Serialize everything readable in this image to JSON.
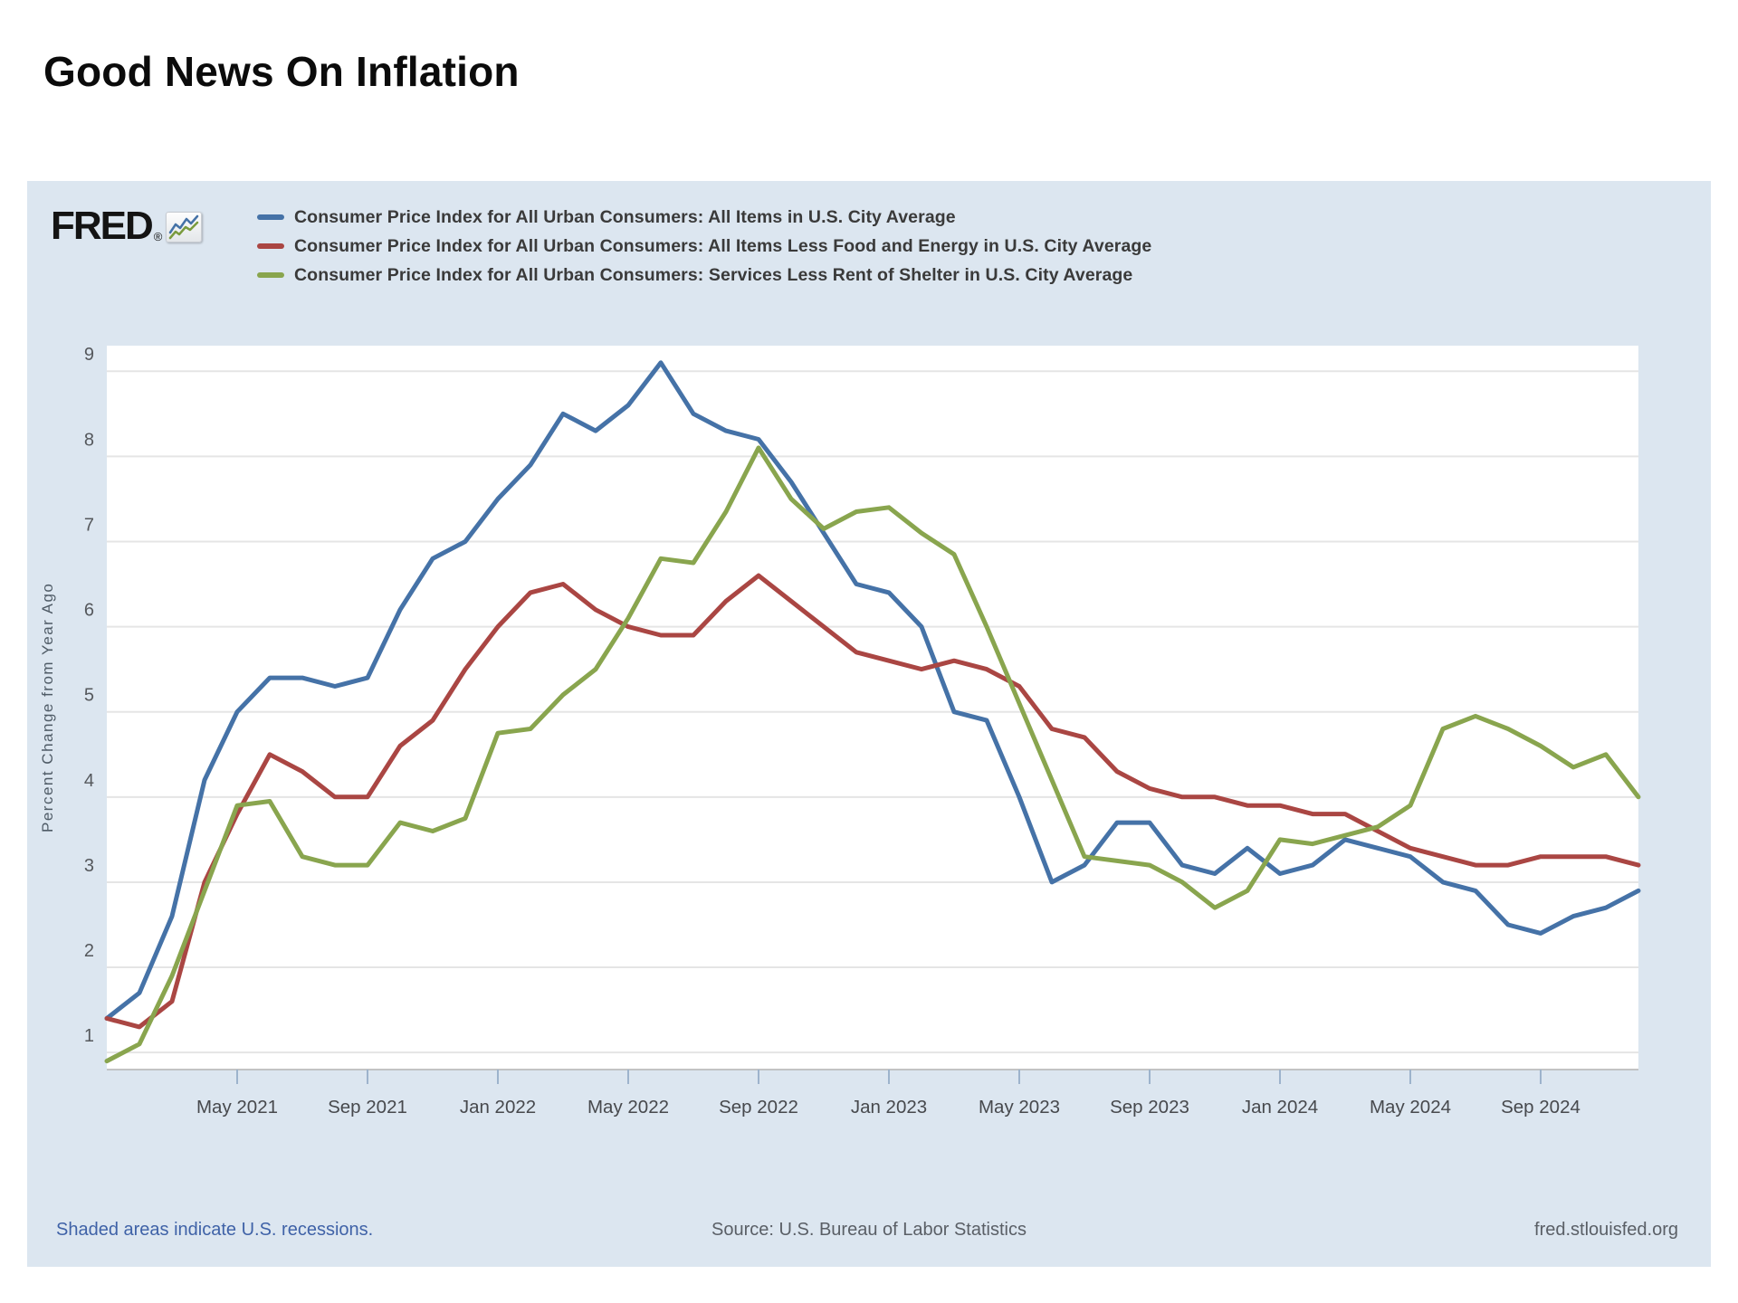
{
  "page": {
    "title": "Good News On Inflation"
  },
  "panel": {
    "logo": {
      "text": "FRED",
      "registered": "®"
    },
    "legend": {
      "items": [
        {
          "label": "Consumer Price Index for All Urban Consumers: All Items in U.S. City Average",
          "color": "#4572a7"
        },
        {
          "label": "Consumer Price Index for All Urban Consumers: All Items Less Food and Energy in U.S. City Average",
          "color": "#aa4643"
        },
        {
          "label": "Consumer Price Index for All Urban Consumers: Services Less Rent of Shelter in U.S. City Average",
          "color": "#89a54e"
        }
      ]
    },
    "y_axis": {
      "title": "Percent Change from Year Ago",
      "ticks": [
        1,
        2,
        3,
        4,
        5,
        6,
        7,
        8,
        9
      ]
    },
    "x_axis": {
      "tick_labels": [
        "May 2021",
        "Sep 2021",
        "Jan 2022",
        "May 2022",
        "Sep 2022",
        "Jan 2023",
        "May 2023",
        "Sep 2023",
        "Jan 2024",
        "May 2024",
        "Sep 2024"
      ],
      "tick_month_indices": [
        4,
        8,
        12,
        16,
        20,
        24,
        28,
        32,
        36,
        40,
        44
      ]
    },
    "footer": {
      "left": "Shaded areas indicate U.S. recessions.",
      "center": "Source: U.S. Bureau of Labor Statistics",
      "right": "fred.stlouisfed.org"
    }
  },
  "chart_data": {
    "type": "line",
    "title": "Good News On Inflation",
    "ylabel": "Percent Change from Year Ago",
    "ylim": [
      0.8,
      9.3
    ],
    "grid": true,
    "legend_position": "top-left",
    "x": [
      "2021-01",
      "2021-02",
      "2021-03",
      "2021-04",
      "2021-05",
      "2021-06",
      "2021-07",
      "2021-08",
      "2021-09",
      "2021-10",
      "2021-11",
      "2021-12",
      "2022-01",
      "2022-02",
      "2022-03",
      "2022-04",
      "2022-05",
      "2022-06",
      "2022-07",
      "2022-08",
      "2022-09",
      "2022-10",
      "2022-11",
      "2022-12",
      "2023-01",
      "2023-02",
      "2023-03",
      "2023-04",
      "2023-05",
      "2023-06",
      "2023-07",
      "2023-08",
      "2023-09",
      "2023-10",
      "2023-11",
      "2023-12",
      "2024-01",
      "2024-02",
      "2024-03",
      "2024-04",
      "2024-05",
      "2024-06",
      "2024-07",
      "2024-08",
      "2024-09",
      "2024-10",
      "2024-11",
      "2024-12"
    ],
    "series": [
      {
        "key": "cpi-all-items",
        "name": "Consumer Price Index for All Urban Consumers: All Items in U.S. City Average",
        "color": "#4572a7",
        "values": [
          1.4,
          1.7,
          2.6,
          4.2,
          5.0,
          5.4,
          5.4,
          5.3,
          5.4,
          6.2,
          6.8,
          7.0,
          7.5,
          7.9,
          8.5,
          8.3,
          8.6,
          9.1,
          8.5,
          8.3,
          8.2,
          7.7,
          7.1,
          6.5,
          6.4,
          6.0,
          5.0,
          4.9,
          4.0,
          3.0,
          3.2,
          3.7,
          3.7,
          3.2,
          3.1,
          3.4,
          3.1,
          3.2,
          3.5,
          3.4,
          3.3,
          3.0,
          2.9,
          2.5,
          2.4,
          2.6,
          2.7,
          2.9
        ]
      },
      {
        "key": "cpi-core",
        "name": "Consumer Price Index for All Urban Consumers: All Items Less Food and Energy in U.S. City Average",
        "color": "#aa4643",
        "values": [
          1.4,
          1.3,
          1.6,
          3.0,
          3.8,
          4.5,
          4.3,
          4.0,
          4.0,
          4.6,
          4.9,
          5.5,
          6.0,
          6.4,
          6.5,
          6.2,
          6.0,
          5.9,
          5.9,
          6.3,
          6.6,
          6.3,
          6.0,
          5.7,
          5.6,
          5.5,
          5.6,
          5.5,
          5.3,
          4.8,
          4.7,
          4.3,
          4.1,
          4.0,
          4.0,
          3.9,
          3.9,
          3.8,
          3.8,
          3.6,
          3.4,
          3.3,
          3.2,
          3.2,
          3.3,
          3.3,
          3.3,
          3.2
        ]
      },
      {
        "key": "cpi-services-less-shelter",
        "name": "Consumer Price Index for All Urban Consumers: Services Less Rent of Shelter in U.S. City Average",
        "color": "#89a54e",
        "values": [
          0.9,
          1.1,
          1.9,
          2.9,
          3.9,
          3.95,
          3.3,
          3.2,
          3.2,
          3.7,
          3.6,
          3.75,
          4.75,
          4.8,
          5.2,
          5.5,
          6.1,
          6.8,
          6.75,
          7.35,
          8.1,
          7.5,
          7.15,
          7.35,
          7.4,
          7.1,
          6.85,
          6.0,
          5.1,
          4.2,
          3.3,
          3.25,
          3.2,
          3.0,
          2.7,
          2.9,
          3.5,
          3.45,
          3.55,
          3.65,
          3.9,
          4.8,
          4.95,
          4.8,
          4.6,
          4.35,
          4.5,
          4.0
        ]
      }
    ]
  }
}
